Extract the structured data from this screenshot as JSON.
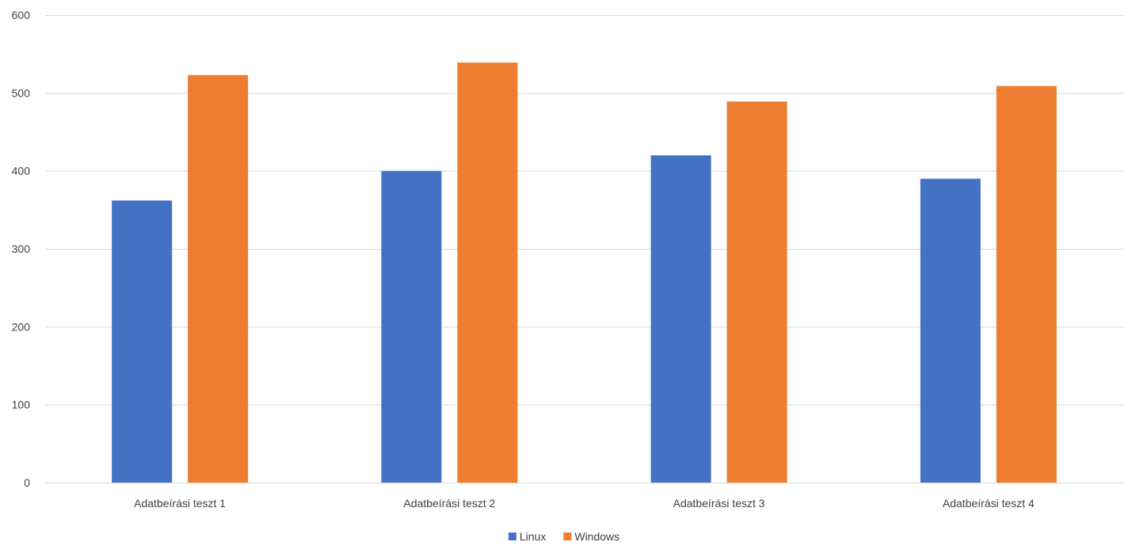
{
  "chart_data": {
    "type": "bar",
    "categories": [
      "Adatbeírási teszt 1",
      "Adatbeírási teszt 2",
      "Adatbeírási teszt 3",
      "Adatbeírási teszt 4"
    ],
    "series": [
      {
        "name": "Linux",
        "color": "#4472C4",
        "values": [
          362,
          400,
          420,
          390
        ]
      },
      {
        "name": "Windows",
        "color": "#ED7D31",
        "values": [
          523,
          539,
          489,
          509
        ]
      }
    ],
    "ylim": [
      0,
      600
    ],
    "yticks": [
      0,
      100,
      200,
      300,
      400,
      500,
      600
    ],
    "grid": true,
    "gridColor": "#D9D9D9",
    "legend_position": "bottom",
    "title": "",
    "xlabel": "",
    "ylabel": ""
  }
}
